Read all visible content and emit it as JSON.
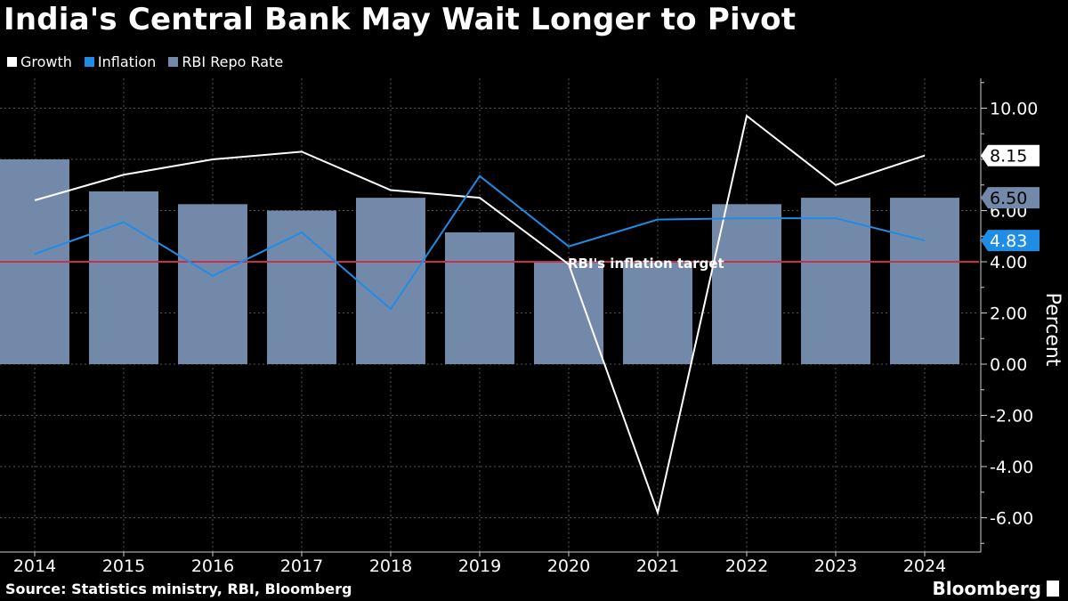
{
  "title": "India's Central Bank May Wait Longer to Pivot",
  "source": "Source: Statistics ministry, RBI, Bloomberg",
  "brand": "Bloomberg",
  "legend": [
    {
      "label": "Growth",
      "color": "#ffffff"
    },
    {
      "label": "Inflation",
      "color": "#1f8ce6"
    },
    {
      "label": "RBI Repo Rate",
      "color": "#7389aa"
    }
  ],
  "chart_data": {
    "type": "bar",
    "categories": [
      "2014",
      "2015",
      "2016",
      "2017",
      "2018",
      "2019",
      "2020",
      "2021",
      "2022",
      "2023",
      "2024"
    ],
    "series": [
      {
        "name": "RBI Repo Rate",
        "kind": "bar",
        "color": "#7389aa",
        "values": [
          8.0,
          6.75,
          6.25,
          6.0,
          6.5,
          5.15,
          4.0,
          4.0,
          6.25,
          6.5,
          6.5
        ]
      },
      {
        "name": "Growth",
        "kind": "line",
        "color": "#ffffff",
        "values": [
          6.4,
          7.4,
          8.0,
          8.3,
          6.8,
          6.5,
          3.9,
          -5.8,
          9.7,
          7.0,
          8.15
        ]
      },
      {
        "name": "Inflation",
        "kind": "line",
        "color": "#1f8ce6",
        "values": [
          4.3,
          5.55,
          3.45,
          5.15,
          2.15,
          7.35,
          4.6,
          5.65,
          5.7,
          5.7,
          4.83
        ]
      }
    ],
    "end_labels": [
      {
        "series": "Growth",
        "text": "8.15",
        "value": 8.15,
        "bg": "#ffffff",
        "fg": "#000000"
      },
      {
        "series": "RBI Repo Rate",
        "text": "6.50",
        "value": 6.5,
        "bg": "#7389aa",
        "fg": "#000000"
      },
      {
        "series": "Inflation",
        "text": "4.83",
        "value": 4.83,
        "bg": "#1f8ce6",
        "fg": "#ffffff"
      }
    ],
    "reference_line": {
      "value": 4.0,
      "label": "RBI's inflation target",
      "color": "#c8304a"
    },
    "ylabel": "Percent",
    "ylim": [
      -7.2,
      11.2
    ],
    "yticks": [
      "-6.00",
      "-4.00",
      "-2.00",
      "0.00",
      "2.00",
      "4.00",
      "6.00",
      "8.00",
      "10.00"
    ],
    "ytick_values": [
      -6,
      -4,
      -2,
      0,
      2,
      4,
      6,
      8,
      10
    ],
    "grid": true,
    "legend_position": "top-left"
  }
}
